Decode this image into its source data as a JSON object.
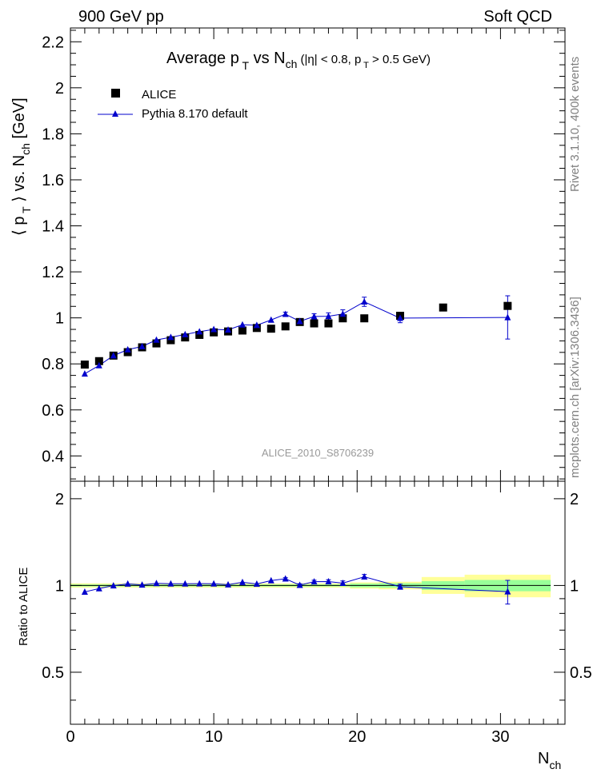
{
  "header": {
    "left": "900 GeV pp",
    "right": "Soft QCD"
  },
  "side_labels": {
    "rivet": "Rivet 3.1.10,  400k events",
    "mcplots": "mcplots.cern.ch [arXiv:1306.3436]"
  },
  "chart_data": [
    {
      "type": "scatter",
      "title": "Average p_T vs N_ch (|η| < 0.8, p_T > 0.5 GeV)",
      "ylabel": "⟨ p_T ⟩ vs. N_ch [GeV]",
      "xlim": [
        0,
        34.5
      ],
      "ylim": [
        0.29,
        2.26
      ],
      "yticks": [
        "0.4",
        "0.6",
        "0.8",
        "1",
        "1.2",
        "1.4",
        "1.6",
        "1.8",
        "2",
        "2.2"
      ],
      "analysis_label": "ALICE_2010_S8706239",
      "legend_position": "top-left",
      "series": [
        {
          "name": "ALICE",
          "marker": "square",
          "color": "#000000",
          "x": [
            1,
            2,
            3,
            4,
            5,
            6,
            7,
            8,
            9,
            10,
            11,
            12,
            13,
            14,
            15,
            16,
            17,
            18,
            19,
            20.5,
            23,
            26,
            30.5
          ],
          "y": [
            0.797,
            0.812,
            0.836,
            0.851,
            0.872,
            0.889,
            0.903,
            0.915,
            0.926,
            0.937,
            0.941,
            0.945,
            0.956,
            0.953,
            0.963,
            0.982,
            0.976,
            0.976,
            0.998,
            0.998,
            1.009,
            1.045,
            1.052
          ]
        },
        {
          "name": "Pythia 8.170 default",
          "marker": "triangle-line",
          "color": "#0000cc",
          "x": [
            1,
            2,
            3,
            4,
            5,
            6,
            7,
            8,
            9,
            10,
            11,
            12,
            13,
            14,
            15,
            16,
            17,
            18,
            19,
            20.5,
            23,
            30.5
          ],
          "y": [
            0.757,
            0.793,
            0.836,
            0.862,
            0.876,
            0.904,
            0.916,
            0.928,
            0.94,
            0.95,
            0.948,
            0.97,
            0.968,
            0.991,
            1.016,
            0.985,
            1.006,
            1.007,
            1.017,
            1.07,
            0.999,
            1.002
          ],
          "yerr": [
            0.004,
            0.004,
            0.004,
            0.004,
            0.004,
            0.004,
            0.004,
            0.005,
            0.005,
            0.005,
            0.006,
            0.006,
            0.007,
            0.008,
            0.009,
            0.011,
            0.012,
            0.015,
            0.018,
            0.02,
            0.02,
            0.094
          ]
        }
      ]
    },
    {
      "type": "line",
      "ylabel": "Ratio to ALICE",
      "xlabel": "N_ch",
      "xlim": [
        0,
        34.5
      ],
      "ylim": [
        0.33,
        2.3
      ],
      "xticks": [
        "0",
        "10",
        "20",
        "30"
      ],
      "yticks": [
        "0.5",
        "1",
        "2"
      ],
      "uncertainty_bands": {
        "x_edges": [
          0,
          19.5,
          21.5,
          24.5,
          27.5,
          33.5
        ],
        "outer_low": [
          0.983,
          0.975,
          0.97,
          0.935,
          0.91
        ],
        "outer_high": [
          1.017,
          1.025,
          1.03,
          1.07,
          1.09
        ],
        "inner_low": [
          0.992,
          0.985,
          0.982,
          0.965,
          0.955
        ],
        "inner_high": [
          1.008,
          1.015,
          1.018,
          1.035,
          1.045
        ],
        "outer_color": "#ffff99",
        "inner_color": "#99ff99"
      },
      "series": [
        {
          "name": "Pythia 8.170 default",
          "color": "#0000cc",
          "x": [
            1,
            2,
            3,
            4,
            5,
            6,
            7,
            8,
            9,
            10,
            11,
            12,
            13,
            14,
            15,
            16,
            17,
            18,
            19,
            20.5,
            23,
            30.5
          ],
          "y": [
            0.95,
            0.976,
            0.999,
            1.013,
            1.005,
            1.017,
            1.014,
            1.014,
            1.015,
            1.014,
            1.007,
            1.026,
            1.012,
            1.04,
            1.055,
            1.003,
            1.031,
            1.032,
            1.019,
            1.072,
            0.99,
            0.952
          ],
          "yerr": [
            0.005,
            0.005,
            0.005,
            0.005,
            0.005,
            0.005,
            0.005,
            0.005,
            0.005,
            0.005,
            0.006,
            0.006,
            0.007,
            0.008,
            0.009,
            0.011,
            0.012,
            0.015,
            0.018,
            0.02,
            0.02,
            0.09
          ]
        }
      ]
    }
  ]
}
